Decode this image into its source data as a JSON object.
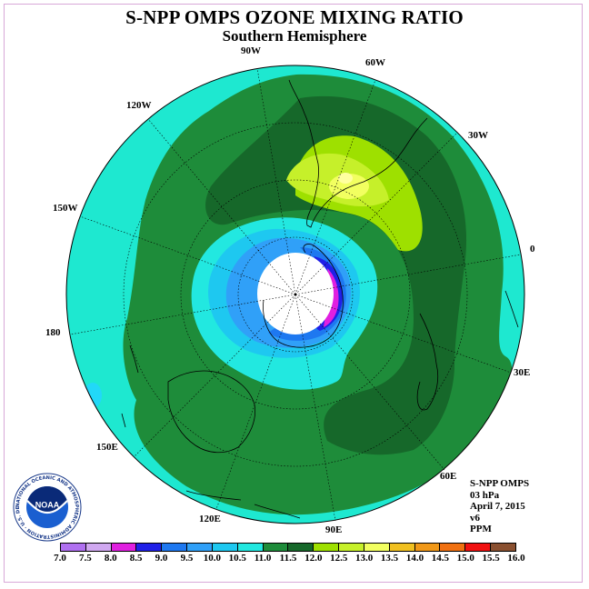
{
  "header": {
    "title": "S-NPP OMPS OZONE MIXING RATIO",
    "subtitle": "Southern Hemisphere"
  },
  "map": {
    "projection": "south-polar-stereographic",
    "longitude_labels": [
      {
        "id": "90w",
        "text": "90W"
      },
      {
        "id": "60w",
        "text": "60W"
      },
      {
        "id": "30w",
        "text": "30W"
      },
      {
        "id": "0",
        "text": "0"
      },
      {
        "id": "30e",
        "text": "30E"
      },
      {
        "id": "60e",
        "text": "60E"
      },
      {
        "id": "90e",
        "text": "90E"
      },
      {
        "id": "120e",
        "text": "120E"
      },
      {
        "id": "150e",
        "text": "150E"
      },
      {
        "id": "180",
        "text": "180"
      },
      {
        "id": "150w",
        "text": "150W"
      },
      {
        "id": "120w",
        "text": "120W"
      }
    ],
    "field_colors": {
      "outer": "#1ee8d0",
      "band_11_11_5": "#1e8c3a",
      "band_11_5_12": "#16682a",
      "band_12_12_5": "#9ee000",
      "band_12_5_13": "#c6f02a",
      "band_13_13_5": "#f2ff60",
      "band_10_5_11": "#22e8e0",
      "band_10_10_5": "#1ec8f0",
      "band_9_5_10": "#30a0f8",
      "band_9_9_5": "#1e78f0",
      "band_8_5_9": "#2020e8",
      "band_8_8_5": "#e020e0",
      "polar_night": "#ffffff"
    }
  },
  "info": {
    "instrument": "S-NPP OMPS",
    "level": "03 hPa",
    "date": "April 7, 2015",
    "version": "v6",
    "units": "PPM"
  },
  "colorbar": {
    "colors": [
      "#b070f0",
      "#d0a8f0",
      "#e020e0",
      "#2020e8",
      "#1e78f0",
      "#30a0f8",
      "#1ec8f0",
      "#22e8e0",
      "#1e8c3a",
      "#16682a",
      "#9ee000",
      "#c6f02a",
      "#f2ff60",
      "#f0c020",
      "#f09818",
      "#f07010",
      "#f01010",
      "#8a5030"
    ],
    "ticks": [
      "7.0",
      "7.5",
      "8.0",
      "8.5",
      "9.0",
      "9.5",
      "10.0",
      "10.5",
      "11.0",
      "11.5",
      "12.0",
      "12.5",
      "13.0",
      "13.5",
      "14.0",
      "14.5",
      "15.0",
      "15.5",
      "16.0"
    ]
  },
  "logo": {
    "icon": "noaa-logo-icon",
    "text": "NOAA",
    "ring_text": "NATIONAL OCEANIC AND ATMOSPHERIC ADMINISTRATION · U.S. DEPARTMENT OF COMMERCE ·"
  }
}
